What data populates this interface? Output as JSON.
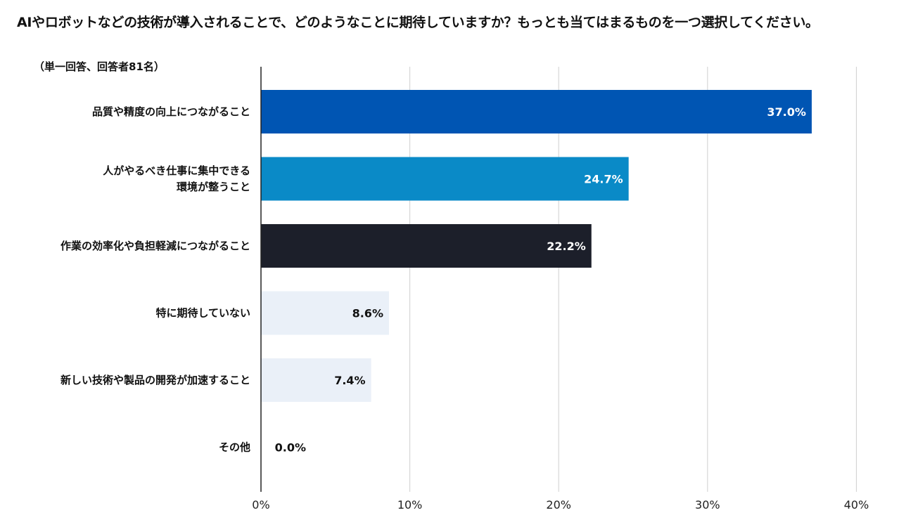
{
  "title": "AIやロボットなどの技術が導入されることで、どのようなことに期待していますか？もっとも当てはまるものを一つ選択してください。",
  "subtitle": "（単一回答、回答者81名）",
  "chart_data": {
    "type": "bar",
    "orientation": "horizontal",
    "title": "AIやロボットなどの技術が導入されることで、どのようなことに期待していますか？もっとも当てはまるものを一つ選択してください。",
    "subtitle": "（単一回答、回答者81名）",
    "categories": [
      [
        "品質や精度の向上につながること"
      ],
      [
        "人がやるべき仕事に集中できる",
        "環境が整うこと"
      ],
      [
        "作業の効率化や負担軽減につながること"
      ],
      [
        "特に期待していない"
      ],
      [
        "新しい技術や製品の開発が加速すること"
      ],
      [
        "その他"
      ]
    ],
    "values": [
      37.0,
      24.7,
      22.2,
      8.6,
      7.4,
      0.0
    ],
    "value_labels": [
      "37.0%",
      "24.7%",
      "22.2%",
      "8.6%",
      "7.4%",
      "0.0%"
    ],
    "bar_colors": [
      "#0055b3",
      "#0a8ac7",
      "#1c1f2a",
      "#eaf0f8",
      "#eaf0f8",
      "#eaf0f8"
    ],
    "label_colors": [
      "#ffffff",
      "#ffffff",
      "#ffffff",
      "#111111",
      "#111111",
      "#111111"
    ],
    "xlim": [
      0,
      40
    ],
    "xticks": [
      "0%",
      "10%",
      "20%",
      "30%",
      "40%"
    ],
    "grid": true,
    "legend": "none"
  }
}
